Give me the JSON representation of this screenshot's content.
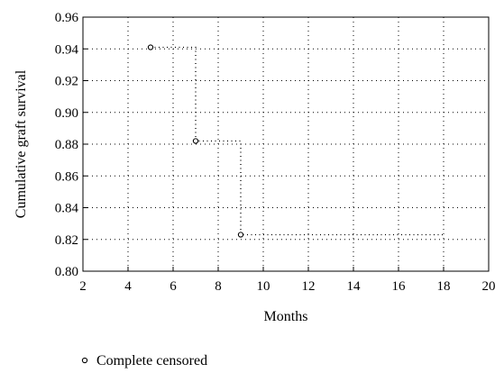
{
  "chart_data": {
    "type": "line",
    "title": "",
    "xlabel": "Months",
    "ylabel": "Cumulative graft survival",
    "xlim": [
      2,
      20
    ],
    "ylim": [
      0.8,
      0.96
    ],
    "x_ticks": [
      2,
      4,
      6,
      8,
      10,
      12,
      14,
      16,
      18,
      20
    ],
    "y_ticks": [
      "0.80",
      "0.82",
      "0.84",
      "0.86",
      "0.88",
      "0.90",
      "0.92",
      "0.94",
      "0.96"
    ],
    "grid": true,
    "line_style": "dotted step",
    "step_curve": [
      {
        "x": 5,
        "y": 0.941
      },
      {
        "x": 7,
        "y": 0.941
      },
      {
        "x": 7,
        "y": 0.882
      },
      {
        "x": 9,
        "y": 0.882
      },
      {
        "x": 9,
        "y": 0.823
      },
      {
        "x": 18,
        "y": 0.823
      }
    ],
    "censored_points": [
      {
        "x": 5,
        "y": 0.941
      },
      {
        "x": 7,
        "y": 0.882
      },
      {
        "x": 9,
        "y": 0.823
      }
    ],
    "legend": {
      "position": "bottom-left",
      "entries": [
        {
          "label": "Complete censored",
          "marker": "open-circle"
        }
      ]
    }
  }
}
